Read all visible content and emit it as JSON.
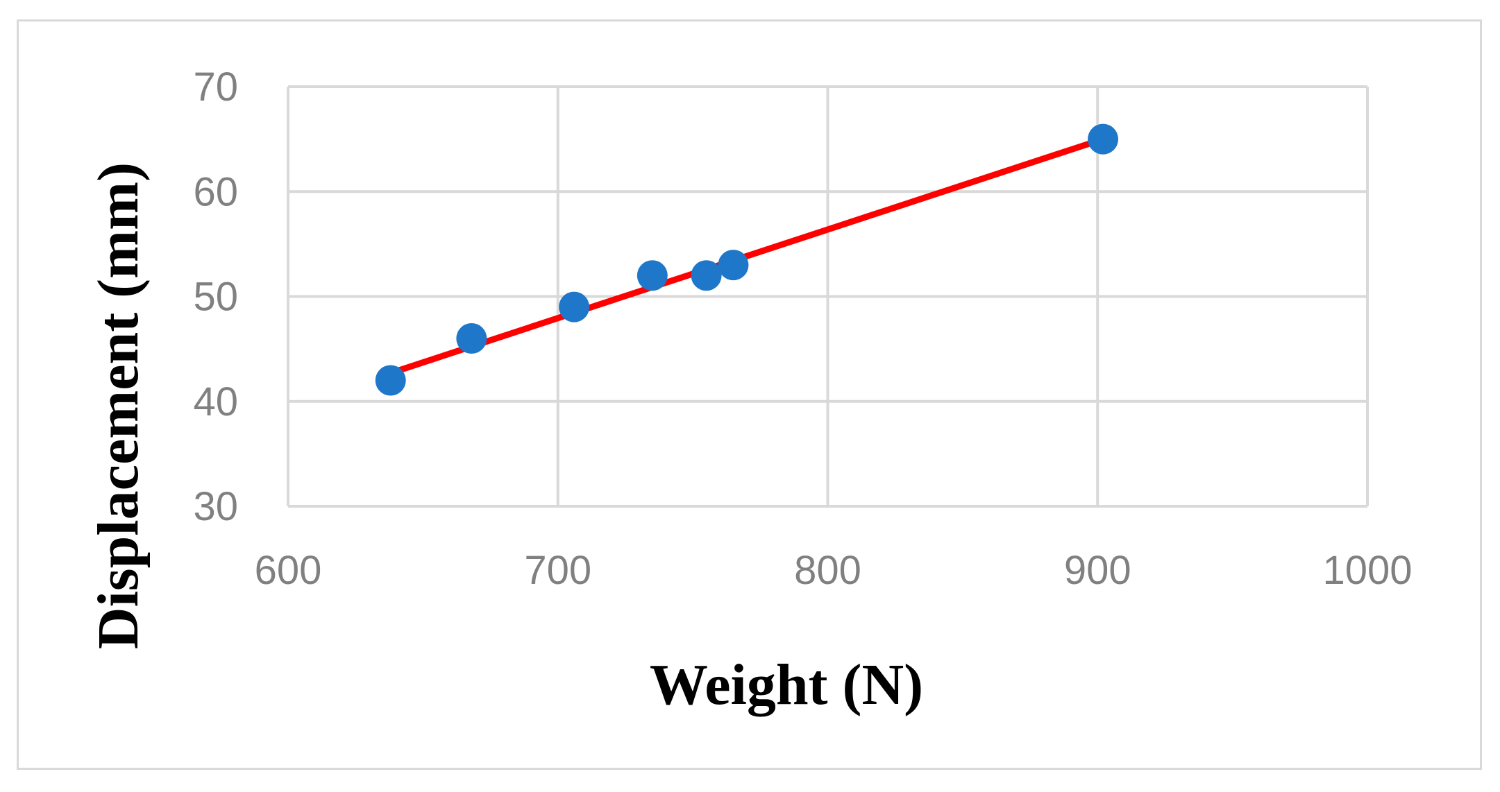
{
  "chart_data": {
    "type": "scatter",
    "xlabel": "Weight (N)",
    "ylabel": "Displacement (mm)",
    "xlim": [
      600,
      1000
    ],
    "ylim": [
      30,
      70
    ],
    "x_ticks": [
      600,
      700,
      800,
      900,
      1000
    ],
    "y_ticks": [
      30,
      40,
      50,
      60,
      70
    ],
    "grid": true,
    "series": [
      {
        "points": [
          {
            "x": 638,
            "y": 42
          },
          {
            "x": 668,
            "y": 46
          },
          {
            "x": 706,
            "y": 49
          },
          {
            "x": 735,
            "y": 52
          },
          {
            "x": 755,
            "y": 52
          },
          {
            "x": 765,
            "y": 53
          },
          {
            "x": 902,
            "y": 65
          }
        ],
        "color": "#1f77c9"
      }
    ],
    "trendline": {
      "type": "linear",
      "from": {
        "x": 638,
        "y": 42.7
      },
      "to": {
        "x": 902,
        "y": 65.0
      },
      "color": "#ff0000"
    }
  }
}
